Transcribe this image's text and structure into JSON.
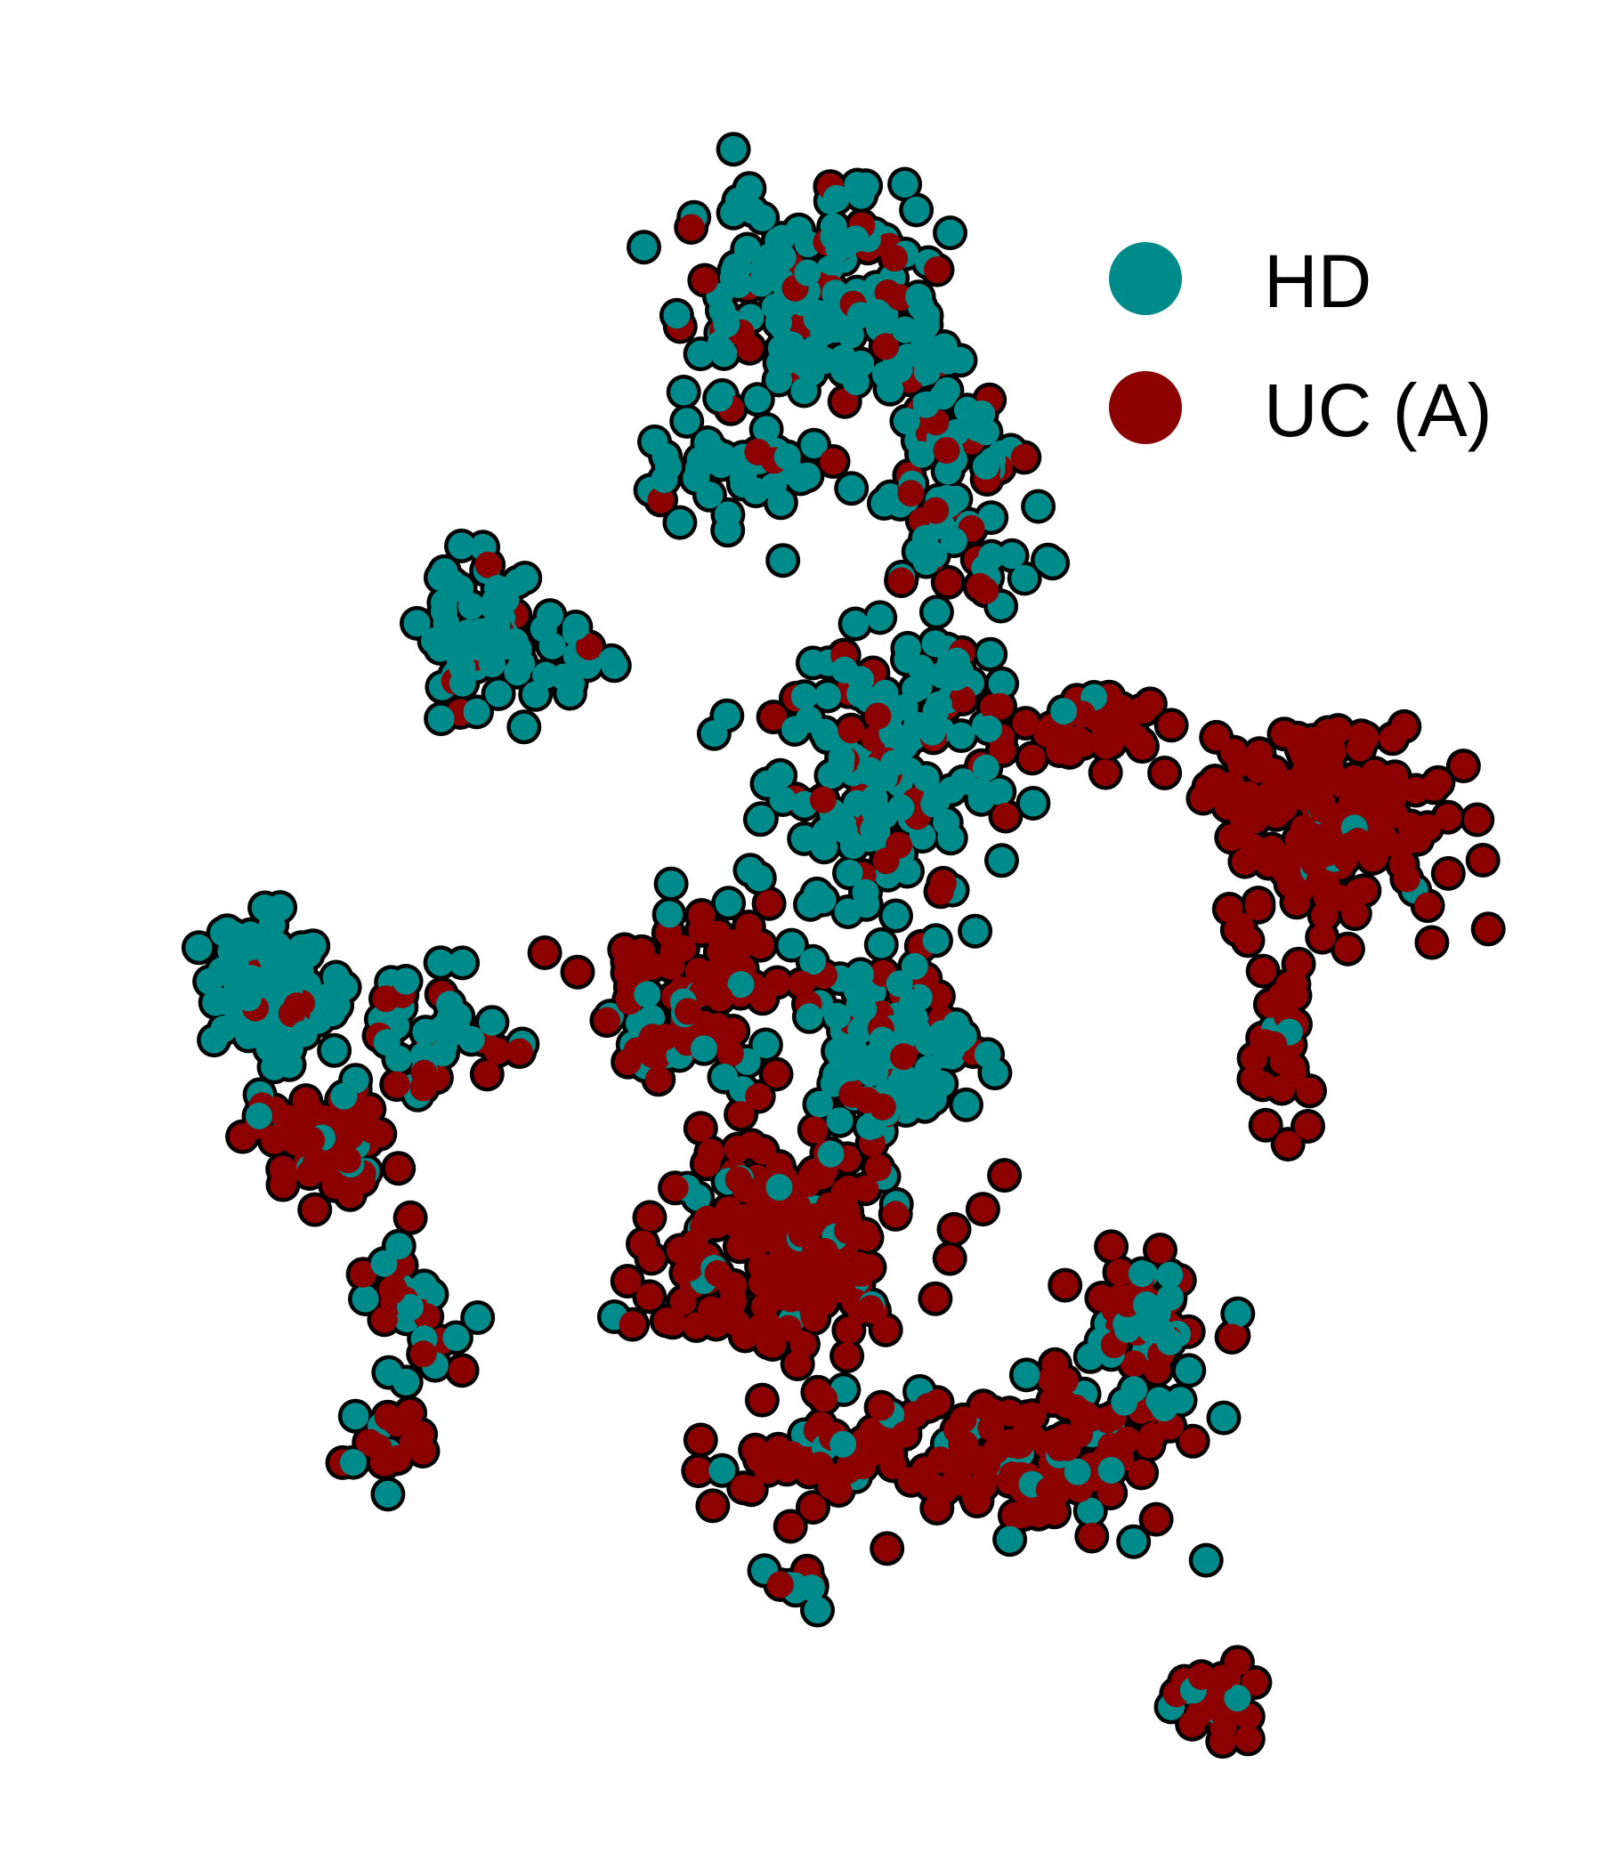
{
  "chart_data": {
    "type": "scatter",
    "title": "",
    "xlabel": "",
    "ylabel": "",
    "axes_visible": false,
    "grid": false,
    "legend_position": "top-right",
    "marker_outline_color": "#000000",
    "series": [
      {
        "name": "HD",
        "color": "#008B8B"
      },
      {
        "name": "UC (A)",
        "color": "#8B0000"
      }
    ],
    "clusters": [
      {
        "region": "upper-arc",
        "x": 0.0,
        "y": 8.8,
        "sx": 1.2,
        "sy": 1.0,
        "n": 160,
        "hd_share": 0.82
      },
      {
        "region": "arc-tail",
        "x": -1.2,
        "y": 6.6,
        "sx": 0.8,
        "sy": 0.4,
        "n": 35,
        "hd_share": 0.9
      },
      {
        "region": "upper-arc-right",
        "x": 1.8,
        "y": 6.4,
        "sx": 0.7,
        "sy": 1.2,
        "n": 90,
        "hd_share": 0.7
      },
      {
        "region": "upper-left-blob",
        "x": -4.6,
        "y": 4.4,
        "sx": 0.5,
        "sy": 0.6,
        "n": 70,
        "hd_share": 0.93
      },
      {
        "region": "upper-left-tail",
        "x": -3.4,
        "y": 4.1,
        "sx": 0.6,
        "sy": 0.4,
        "n": 20,
        "hd_share": 0.9
      },
      {
        "region": "center-upper",
        "x": 0.8,
        "y": 2.6,
        "sx": 1.1,
        "sy": 1.3,
        "n": 170,
        "hd_share": 0.78
      },
      {
        "region": "right-bridge",
        "x": 3.7,
        "y": 3.2,
        "sx": 0.9,
        "sy": 0.4,
        "n": 40,
        "hd_share": 0.12
      },
      {
        "region": "right-cluster",
        "x": 7.0,
        "y": 2.0,
        "sx": 1.0,
        "sy": 0.9,
        "n": 170,
        "hd_share": 0.06
      },
      {
        "region": "right-stem",
        "x": 6.4,
        "y": -1.0,
        "sx": 0.4,
        "sy": 0.7,
        "n": 30,
        "hd_share": 0.1
      },
      {
        "region": "left-cluster",
        "x": -7.4,
        "y": -0.3,
        "sx": 0.7,
        "sy": 0.6,
        "n": 110,
        "hd_share": 0.85
      },
      {
        "region": "left-cluster-lower",
        "x": -6.7,
        "y": -2.3,
        "sx": 0.6,
        "sy": 0.5,
        "n": 70,
        "hd_share": 0.15
      },
      {
        "region": "left-branch",
        "x": -5.1,
        "y": -0.8,
        "sx": 0.7,
        "sy": 0.5,
        "n": 40,
        "hd_share": 0.7
      },
      {
        "region": "left-stem",
        "x": -5.4,
        "y": -4.4,
        "sx": 0.5,
        "sy": 0.7,
        "n": 30,
        "hd_share": 0.35
      },
      {
        "region": "left-stem-tip",
        "x": -5.8,
        "y": -6.2,
        "sx": 0.4,
        "sy": 0.3,
        "n": 18,
        "hd_share": 0.25
      },
      {
        "region": "center-left",
        "x": -1.6,
        "y": -0.4,
        "sx": 0.9,
        "sy": 0.7,
        "n": 90,
        "hd_share": 0.2
      },
      {
        "region": "center-mid",
        "x": 0.9,
        "y": -1.0,
        "sx": 0.8,
        "sy": 0.8,
        "n": 110,
        "hd_share": 0.7
      },
      {
        "region": "center-lower",
        "x": -0.4,
        "y": -3.6,
        "sx": 1.2,
        "sy": 1.0,
        "n": 200,
        "hd_share": 0.1
      },
      {
        "region": "bottom-center",
        "x": 0.2,
        "y": -6.4,
        "sx": 1.0,
        "sy": 0.5,
        "n": 60,
        "hd_share": 0.08
      },
      {
        "region": "bottom-right",
        "x": 3.0,
        "y": -6.4,
        "sx": 1.2,
        "sy": 0.6,
        "n": 120,
        "hd_share": 0.22
      },
      {
        "region": "right-lower",
        "x": 4.5,
        "y": -4.7,
        "sx": 0.6,
        "sy": 0.7,
        "n": 60,
        "hd_share": 0.55
      },
      {
        "region": "bottom-tip",
        "x": 5.4,
        "y": -9.6,
        "sx": 0.4,
        "sy": 0.3,
        "n": 30,
        "hd_share": 0.25
      },
      {
        "region": "bottom-left-small",
        "x": -0.2,
        "y": -8.1,
        "sx": 0.3,
        "sy": 0.2,
        "n": 10,
        "hd_share": 0.4
      }
    ],
    "xlim": [
      -10,
      10
    ],
    "ylim": [
      -11,
      11
    ]
  }
}
